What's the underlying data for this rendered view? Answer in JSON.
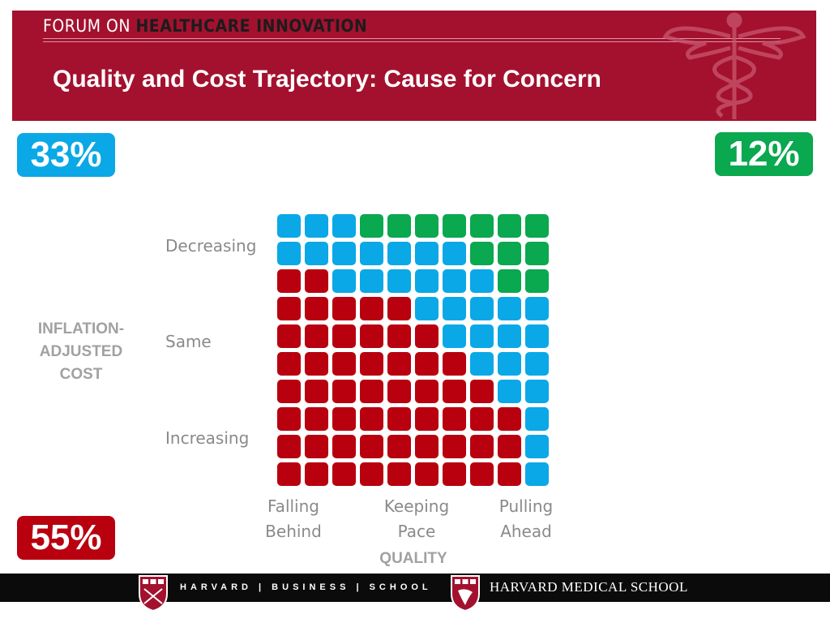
{
  "header": {
    "brand_prefix": "FORUM ON",
    "brand_suffix": "HEALTHCARE INNOVATION",
    "title": "Quality and Cost Trajectory: Cause for Concern"
  },
  "badges": {
    "top_left": "33%",
    "top_right": "12%",
    "bottom_left": "55%"
  },
  "colors": {
    "header_bg": "#a3112f",
    "blue": "#0aa8e6",
    "green": "#0aa84f",
    "red": "#b8000f"
  },
  "chart_data": {
    "type": "waffle",
    "xlabel": "QUALITY",
    "ylabel": "INFLATION-ADJUSTED COST",
    "x_ticks": [
      "Falling\nBehind",
      "Keeping\nPace",
      "Pulling\nAhead"
    ],
    "y_ticks": [
      "Decreasing",
      "Same",
      "Increasing"
    ],
    "categories": [
      "blue",
      "green",
      "red"
    ],
    "percentages": [
      33,
      12,
      55
    ],
    "grid": [
      [
        "B",
        "B",
        "B",
        "G",
        "G",
        "G",
        "G",
        "G",
        "G",
        "G"
      ],
      [
        "B",
        "B",
        "B",
        "B",
        "B",
        "B",
        "B",
        "G",
        "G",
        "G"
      ],
      [
        "R",
        "R",
        "B",
        "B",
        "B",
        "B",
        "B",
        "B",
        "G",
        "G"
      ],
      [
        "R",
        "R",
        "R",
        "R",
        "R",
        "B",
        "B",
        "B",
        "B",
        "B"
      ],
      [
        "R",
        "R",
        "R",
        "R",
        "R",
        "R",
        "B",
        "B",
        "B",
        "B"
      ],
      [
        "R",
        "R",
        "R",
        "R",
        "R",
        "R",
        "R",
        "B",
        "B",
        "B"
      ],
      [
        "R",
        "R",
        "R",
        "R",
        "R",
        "R",
        "R",
        "R",
        "B",
        "B"
      ],
      [
        "R",
        "R",
        "R",
        "R",
        "R",
        "R",
        "R",
        "R",
        "R",
        "B"
      ],
      [
        "R",
        "R",
        "R",
        "R",
        "R",
        "R",
        "R",
        "R",
        "R",
        "B"
      ],
      [
        "R",
        "R",
        "R",
        "R",
        "R",
        "R",
        "R",
        "R",
        "R",
        "B"
      ]
    ]
  },
  "footer": {
    "hbs": "HARVARD | BUSINESS | SCHOOL",
    "hms": "HARVARD MEDICAL SCHOOL"
  }
}
